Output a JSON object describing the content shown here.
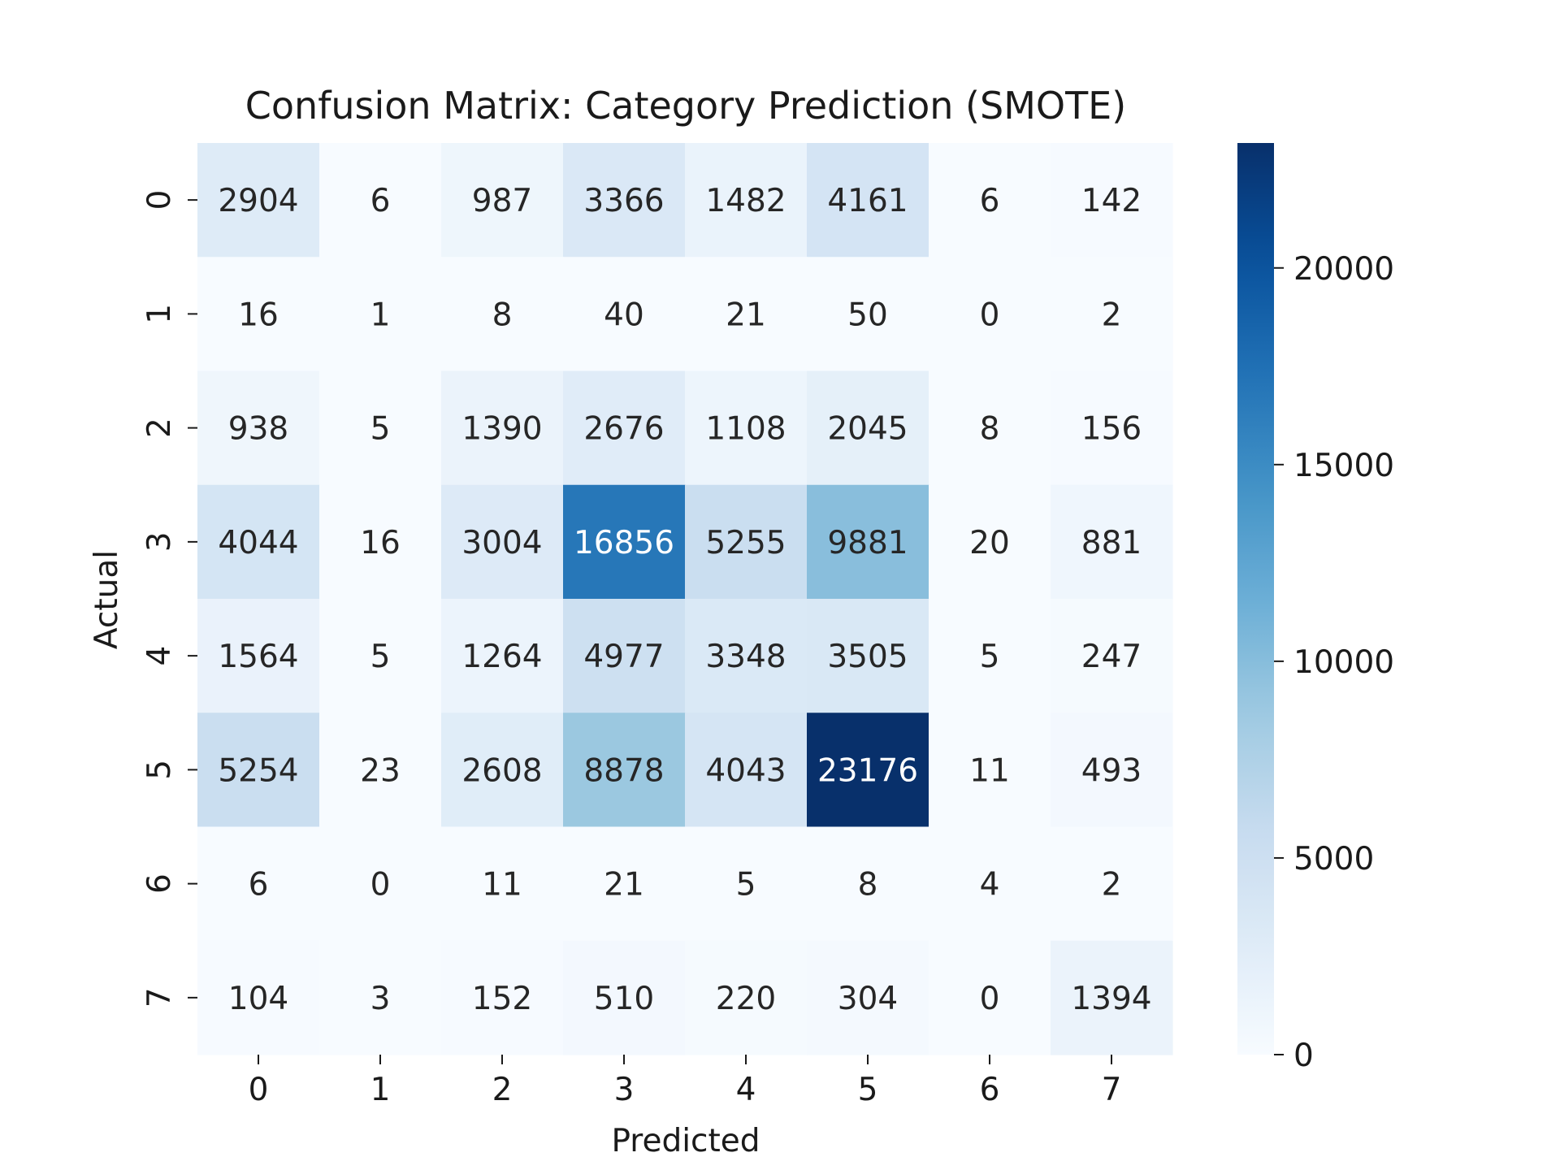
{
  "chart_data": {
    "type": "heatmap",
    "title": "Confusion Matrix: Category Prediction (SMOTE)",
    "xlabel": "Predicted",
    "ylabel": "Actual",
    "x_categories": [
      "0",
      "1",
      "2",
      "3",
      "4",
      "5",
      "6",
      "7"
    ],
    "y_categories": [
      "0",
      "1",
      "2",
      "3",
      "4",
      "5",
      "6",
      "7"
    ],
    "values": [
      [
        2904,
        6,
        987,
        3366,
        1482,
        4161,
        6,
        142
      ],
      [
        16,
        1,
        8,
        40,
        21,
        50,
        0,
        2
      ],
      [
        938,
        5,
        1390,
        2676,
        1108,
        2045,
        8,
        156
      ],
      [
        4044,
        16,
        3004,
        16856,
        5255,
        9881,
        20,
        881
      ],
      [
        1564,
        5,
        1264,
        4977,
        3348,
        3505,
        5,
        247
      ],
      [
        5254,
        23,
        2608,
        8878,
        4043,
        23176,
        11,
        493
      ],
      [
        6,
        0,
        11,
        21,
        5,
        8,
        4,
        2
      ],
      [
        104,
        3,
        152,
        510,
        220,
        304,
        0,
        1394
      ]
    ],
    "colormap": "Blues",
    "value_range": [
      0,
      23176
    ],
    "colorbar": {
      "ticks": [
        0,
        5000,
        10000,
        15000,
        20000
      ],
      "tick_labels": [
        "0",
        "5000",
        "10000",
        "15000",
        "20000"
      ]
    }
  }
}
